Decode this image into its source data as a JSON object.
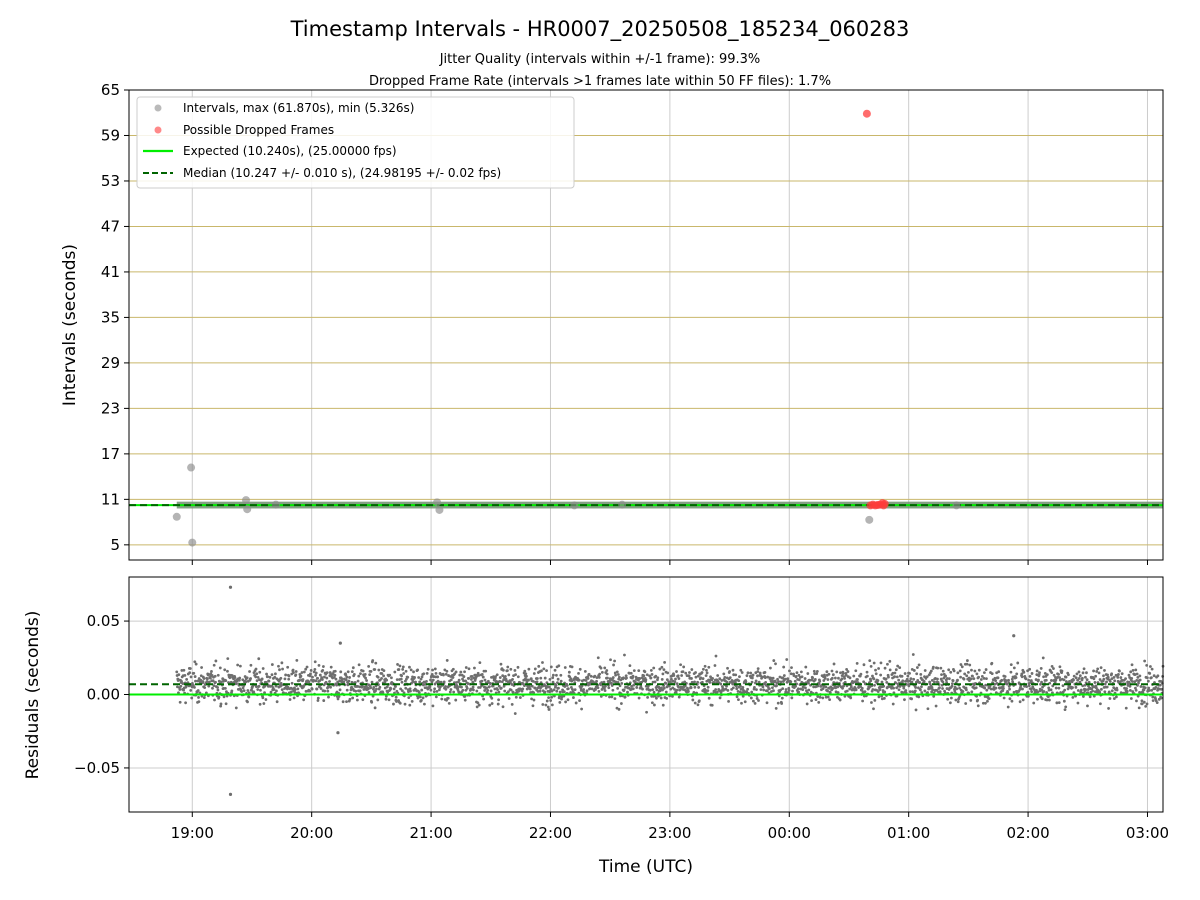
{
  "chart_data": {
    "title": "Timestamp Intervals - HR0007_20250508_185234_060283",
    "subtitle_1": "Jitter Quality (intervals within +/-1 frame): 99.3%",
    "subtitle_2": "Dropped Frame Rate (intervals >1 frames late within 50 FF files): 1.7%",
    "xlabel": "Time (UTC)",
    "x_ticks": [
      "19:00",
      "20:00",
      "21:00",
      "22:00",
      "23:00",
      "00:00",
      "01:00",
      "02:00",
      "03:00"
    ],
    "x_tick_hours": [
      19,
      20,
      21,
      22,
      23,
      24,
      25,
      26,
      27
    ],
    "xlim_hours": [
      18.47,
      27.13
    ],
    "panels": [
      {
        "type": "scatter",
        "ylabel": "Intervals (seconds)",
        "ylim": [
          3,
          65
        ],
        "y_ticks": [
          5,
          11,
          17,
          23,
          29,
          35,
          41,
          47,
          53,
          59,
          65
        ],
        "grid": "horizontal and vertical",
        "legend_placement": "top-left",
        "legend": [
          "Intervals, max (61.870s), min (5.326s)",
          "Possible Dropped Frames",
          "Expected (10.240s), (25.00000 fps)",
          "Median (10.247 +/- 0.010 s), (24.98195 +/- 0.02 fps)"
        ],
        "expected": 10.24,
        "median": 10.247,
        "band": {
          "from_hour": 18.87,
          "to_hour": 27.13,
          "center": 10.247,
          "half_width": 0.45
        },
        "intervals": [
          [
            18.87,
            8.7
          ],
          [
            18.99,
            15.2
          ],
          [
            19.0,
            5.3
          ],
          [
            19.45,
            10.9
          ],
          [
            19.46,
            9.7
          ],
          [
            19.7,
            10.3
          ],
          [
            21.05,
            10.6
          ],
          [
            21.07,
            9.6
          ],
          [
            22.2,
            10.2
          ],
          [
            22.6,
            10.3
          ],
          [
            24.67,
            8.3
          ],
          [
            25.4,
            10.2
          ]
        ],
        "dropped_frames": [
          [
            24.65,
            61.87
          ],
          [
            24.68,
            10.2
          ],
          [
            24.7,
            10.3
          ],
          [
            24.72,
            10.2
          ],
          [
            24.74,
            10.25
          ],
          [
            24.76,
            10.3
          ],
          [
            24.78,
            10.5
          ],
          [
            24.79,
            10.2
          ],
          [
            24.8,
            10.4
          ]
        ],
        "colors": {
          "intervals": "#8c8c8c",
          "dropped": "#ff3b3b",
          "expected": "#00ee00",
          "median": "#006400",
          "grid_h": "#c9b76b",
          "grid_v": "#cccccc"
        }
      },
      {
        "type": "scatter",
        "ylabel": "Residuals (seconds)",
        "ylim": [
          -0.08,
          0.08
        ],
        "y_ticks": [
          -0.05,
          0.0,
          0.05
        ],
        "y_tick_labels": [
          "−0.05",
          "0.00",
          "0.05"
        ],
        "grid": "horizontal and vertical",
        "expected": 0.0,
        "median": 0.007,
        "residual_range_hours": [
          18.87,
          27.13
        ],
        "residual_center": 0.007,
        "residual_sd": 0.009,
        "residual_count": 2900,
        "residual_outliers": [
          [
            19.32,
            0.073
          ],
          [
            19.32,
            -0.068
          ],
          [
            20.24,
            0.035
          ],
          [
            20.22,
            -0.026
          ],
          [
            25.88,
            0.04
          ]
        ],
        "colors": {
          "points": "#6e6e6e",
          "expected": "#00ee00",
          "median": "#006400",
          "grid": "#cccccc"
        }
      }
    ]
  }
}
